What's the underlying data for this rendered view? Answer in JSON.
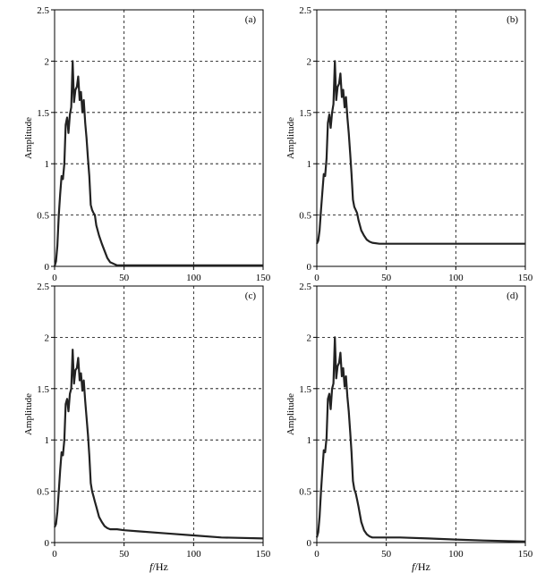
{
  "chart_data": [
    {
      "panel_label": "(a)",
      "type": "line",
      "ylabel": "Amplitude",
      "xlabel": "",
      "xlim": [
        0,
        150
      ],
      "ylim": [
        0,
        2.5
      ],
      "xticks": [
        "0",
        "50",
        "100",
        "150"
      ],
      "yticks": [
        "0",
        "0.5",
        "1",
        "1.5",
        "2",
        "2.5"
      ],
      "grid": true,
      "series": [
        {
          "x": [
            0,
            1,
            2,
            3,
            4,
            5,
            6,
            7,
            8,
            9,
            10,
            11,
            12,
            13,
            14,
            15,
            16,
            17,
            18,
            19,
            20,
            21,
            22,
            23,
            24,
            25,
            26,
            27,
            28,
            29,
            30,
            32,
            34,
            36,
            38,
            40,
            45,
            50,
            60,
            80,
            100,
            120,
            150
          ],
          "y": [
            0.0,
            0.05,
            0.2,
            0.5,
            0.7,
            0.88,
            0.85,
            1.0,
            1.38,
            1.45,
            1.3,
            1.48,
            1.55,
            2.0,
            1.6,
            1.72,
            1.75,
            1.85,
            1.62,
            1.7,
            1.5,
            1.62,
            1.4,
            1.25,
            1.05,
            0.88,
            0.6,
            0.55,
            0.52,
            0.5,
            0.4,
            0.3,
            0.22,
            0.15,
            0.08,
            0.04,
            0.01,
            0.01,
            0.01,
            0.01,
            0.01,
            0.01,
            0.01
          ]
        }
      ]
    },
    {
      "panel_label": "(b)",
      "type": "line",
      "ylabel": "Amplitude",
      "xlabel": "",
      "xlim": [
        0,
        150
      ],
      "ylim": [
        0,
        2.5
      ],
      "xticks": [
        "0",
        "50",
        "100",
        "150"
      ],
      "yticks": [
        "0",
        "0.5",
        "1",
        "1.5",
        "2",
        "2.5"
      ],
      "grid": true,
      "series": [
        {
          "x": [
            0,
            1,
            2,
            3,
            4,
            5,
            6,
            7,
            8,
            9,
            10,
            11,
            12,
            13,
            14,
            15,
            16,
            17,
            18,
            19,
            20,
            21,
            22,
            23,
            24,
            25,
            26,
            27,
            28,
            29,
            30,
            32,
            34,
            36,
            38,
            40,
            45,
            50,
            60,
            80,
            100,
            120,
            150
          ],
          "y": [
            0.22,
            0.25,
            0.35,
            0.55,
            0.72,
            0.9,
            0.88,
            1.05,
            1.4,
            1.48,
            1.35,
            1.5,
            1.58,
            2.0,
            1.62,
            1.75,
            1.78,
            1.88,
            1.65,
            1.72,
            1.55,
            1.65,
            1.45,
            1.3,
            1.1,
            0.9,
            0.65,
            0.58,
            0.55,
            0.52,
            0.45,
            0.35,
            0.3,
            0.26,
            0.24,
            0.23,
            0.22,
            0.22,
            0.22,
            0.22,
            0.22,
            0.22,
            0.22
          ]
        }
      ]
    },
    {
      "panel_label": "(c)",
      "type": "line",
      "ylabel": "Amplitude",
      "xlabel": "f/Hz",
      "xlim": [
        0,
        150
      ],
      "ylim": [
        0,
        2.5
      ],
      "xticks": [
        "0",
        "50",
        "100",
        "150"
      ],
      "yticks": [
        "0",
        "0.5",
        "1",
        "1.5",
        "2",
        "2.5"
      ],
      "grid": true,
      "series": [
        {
          "x": [
            0,
            1,
            2,
            3,
            4,
            5,
            6,
            7,
            8,
            9,
            10,
            11,
            12,
            13,
            14,
            15,
            16,
            17,
            18,
            19,
            20,
            21,
            22,
            23,
            24,
            25,
            26,
            27,
            28,
            29,
            30,
            32,
            34,
            36,
            38,
            40,
            45,
            50,
            60,
            80,
            100,
            120,
            150
          ],
          "y": [
            0.15,
            0.18,
            0.3,
            0.5,
            0.7,
            0.88,
            0.85,
            1.0,
            1.35,
            1.4,
            1.28,
            1.45,
            1.5,
            1.88,
            1.55,
            1.68,
            1.7,
            1.8,
            1.58,
            1.65,
            1.48,
            1.58,
            1.38,
            1.22,
            1.05,
            0.85,
            0.58,
            0.5,
            0.45,
            0.4,
            0.35,
            0.25,
            0.2,
            0.16,
            0.14,
            0.13,
            0.13,
            0.12,
            0.11,
            0.09,
            0.07,
            0.05,
            0.04
          ]
        }
      ]
    },
    {
      "panel_label": "(d)",
      "type": "line",
      "ylabel": "Amplitude",
      "xlabel": "f/Hz",
      "xlim": [
        0,
        150
      ],
      "ylim": [
        0,
        2.5
      ],
      "xticks": [
        "0",
        "50",
        "100",
        "150"
      ],
      "yticks": [
        "0",
        "0.5",
        "1",
        "1.5",
        "2",
        "2.5"
      ],
      "grid": true,
      "series": [
        {
          "x": [
            0,
            1,
            2,
            3,
            4,
            5,
            6,
            7,
            8,
            9,
            10,
            11,
            12,
            13,
            14,
            15,
            16,
            17,
            18,
            19,
            20,
            21,
            22,
            23,
            24,
            25,
            26,
            27,
            28,
            29,
            30,
            32,
            34,
            36,
            38,
            40,
            45,
            50,
            60,
            80,
            100,
            120,
            150
          ],
          "y": [
            0.05,
            0.1,
            0.25,
            0.5,
            0.7,
            0.9,
            0.88,
            1.02,
            1.4,
            1.45,
            1.3,
            1.5,
            1.55,
            2.0,
            1.6,
            1.72,
            1.75,
            1.85,
            1.62,
            1.7,
            1.52,
            1.62,
            1.42,
            1.28,
            1.08,
            0.88,
            0.6,
            0.52,
            0.48,
            0.42,
            0.35,
            0.2,
            0.12,
            0.08,
            0.06,
            0.05,
            0.05,
            0.05,
            0.05,
            0.04,
            0.03,
            0.02,
            0.01
          ]
        }
      ]
    }
  ]
}
